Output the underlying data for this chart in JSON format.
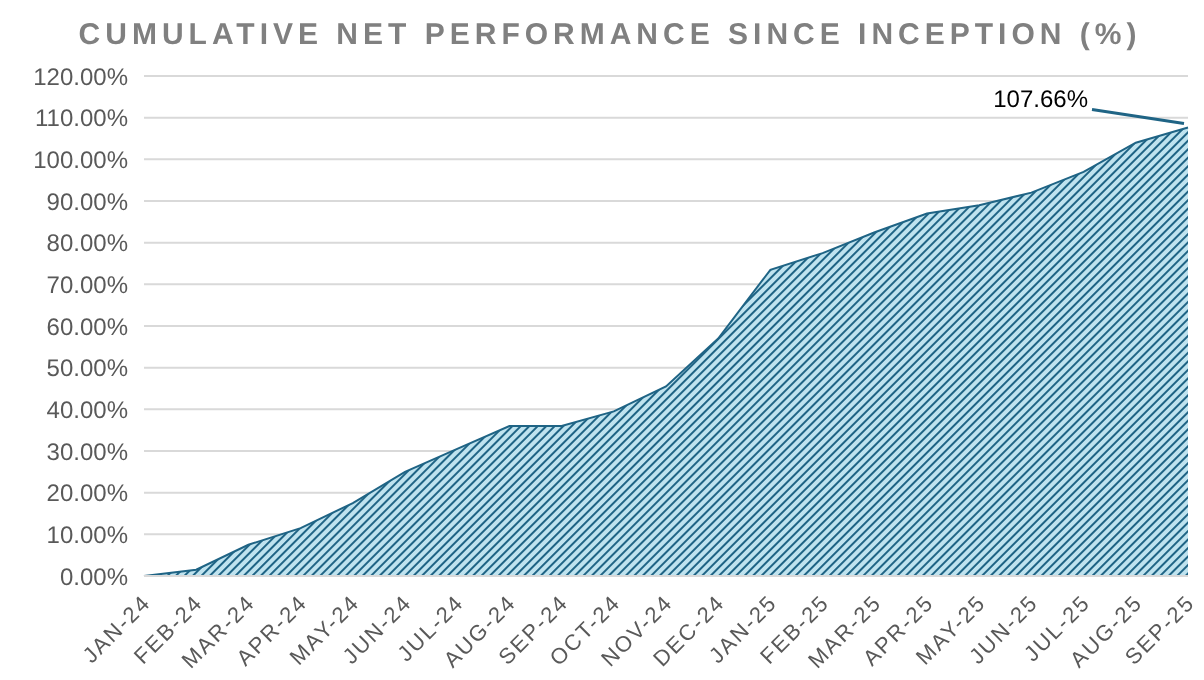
{
  "chart_data": {
    "type": "area",
    "title": "CUMULATIVE NET PERFORMANCE SINCE INCEPTION (%)",
    "categories": [
      "JAN-24",
      "FEB-24",
      "MAR-24",
      "APR-24",
      "MAY-24",
      "JUN-24",
      "JUL-24",
      "AUG-24",
      "SEP-24",
      "OCT-24",
      "NOV-24",
      "DEC-24",
      "JAN-25",
      "FEB-25",
      "MAR-25",
      "APR-25",
      "MAY-25",
      "JUN-25",
      "JUL-25",
      "AUG-25",
      "SEP-25"
    ],
    "series": [
      {
        "color": "#1f6485",
        "values": [
          0,
          1.5,
          7.5,
          11.5,
          17.5,
          25,
          30.5,
          36,
          36,
          39.5,
          45.5,
          57,
          73.5,
          77.5,
          82.5,
          87,
          89,
          92,
          97,
          104,
          107.66
        ],
        "value_labels": [
          null,
          null,
          null,
          null,
          null,
          null,
          null,
          null,
          null,
          null,
          null,
          null,
          null,
          null,
          null,
          null,
          null,
          null,
          null,
          null,
          "107.66%"
        ]
      }
    ],
    "ylim": [
      0,
      120
    ],
    "yticks": [
      {
        "value": 0,
        "label": "0.00%"
      },
      {
        "value": 10,
        "label": "10.00%"
      },
      {
        "value": 20,
        "label": "20.00%"
      },
      {
        "value": 30,
        "label": "30.00%"
      },
      {
        "value": 40,
        "label": "40.00%"
      },
      {
        "value": 50,
        "label": "50.00%"
      },
      {
        "value": 60,
        "label": "60.00%"
      },
      {
        "value": 70,
        "label": "70.00%"
      },
      {
        "value": 80,
        "label": "80.00%"
      },
      {
        "value": 90,
        "label": "90.00%"
      },
      {
        "value": 100,
        "label": "100.00%"
      },
      {
        "value": 110,
        "label": "110.00%"
      },
      {
        "value": 120,
        "label": "120.00%"
      }
    ],
    "grid": "y",
    "legend": false
  }
}
